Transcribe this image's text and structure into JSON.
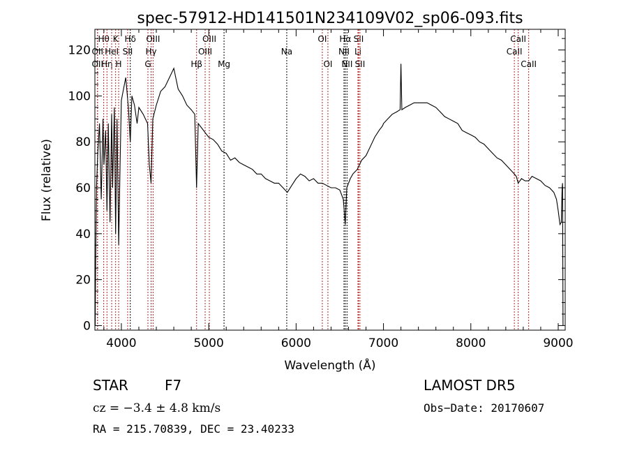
{
  "chart_data": {
    "type": "line",
    "title": "spec-57912-HD141501N234109V02_sp06-093.fits",
    "xlabel": "Wavelength (Å)",
    "ylabel": "Flux (relative)",
    "xlim": [
      3697,
      9080
    ],
    "ylim": [
      -2,
      129
    ],
    "xticks": [
      4000,
      5000,
      6000,
      7000,
      8000,
      9000
    ],
    "yticks": [
      0,
      20,
      40,
      60,
      80,
      100,
      120
    ],
    "grid": false,
    "series": [
      {
        "name": "spectrum",
        "x": [
          3700,
          3705,
          3715,
          3730,
          3750,
          3770,
          3790,
          3800,
          3820,
          3835,
          3850,
          3870,
          3889,
          3900,
          3920,
          3934,
          3950,
          3969,
          3985,
          4000,
          4020,
          4050,
          4080,
          4102,
          4120,
          4150,
          4180,
          4200,
          4250,
          4300,
          4320,
          4340,
          4360,
          4400,
          4450,
          4500,
          4550,
          4600,
          4650,
          4700,
          4750,
          4800,
          4840,
          4861,
          4880,
          4920,
          4960,
          5000,
          5050,
          5100,
          5150,
          5200,
          5250,
          5300,
          5350,
          5400,
          5450,
          5500,
          5550,
          5600,
          5650,
          5700,
          5750,
          5800,
          5850,
          5900,
          5950,
          6000,
          6050,
          6100,
          6150,
          6200,
          6250,
          6300,
          6350,
          6400,
          6450,
          6500,
          6540,
          6563,
          6580,
          6620,
          6650,
          6700,
          6750,
          6800,
          6850,
          6900,
          6950,
          6990,
          7000,
          7050,
          7100,
          7150,
          7190,
          7200,
          7210,
          7250,
          7300,
          7350,
          7400,
          7450,
          7500,
          7550,
          7600,
          7650,
          7700,
          7750,
          7800,
          7850,
          7900,
          7950,
          8000,
          8050,
          8100,
          8150,
          8200,
          8250,
          8300,
          8350,
          8400,
          8450,
          8498,
          8520,
          8542,
          8580,
          8620,
          8662,
          8700,
          8750,
          8800,
          8850,
          8900,
          8950,
          8980,
          9000,
          9020,
          9035,
          9045,
          9050,
          9055
        ],
        "y": [
          0,
          25,
          60,
          75,
          88,
          55,
          90,
          70,
          85,
          50,
          88,
          45,
          92,
          60,
          95,
          40,
          90,
          35,
          70,
          98,
          102,
          108,
          95,
          80,
          100,
          96,
          88,
          95,
          92,
          88,
          70,
          62,
          90,
          96,
          102,
          104,
          108,
          112,
          103,
          100,
          96,
          94,
          92,
          60,
          88,
          86,
          84,
          82,
          81,
          79,
          76,
          75,
          72,
          73,
          71,
          70,
          69,
          68,
          66,
          66,
          64,
          63,
          62,
          62,
          60,
          58,
          61,
          64,
          66,
          65,
          63,
          64,
          62,
          62,
          61,
          60,
          60,
          59,
          55,
          44,
          60,
          64,
          66,
          68,
          72,
          74,
          78,
          82,
          85,
          87,
          88,
          90,
          92,
          93,
          94,
          114,
          94,
          95,
          96,
          97,
          97,
          97,
          97,
          96,
          95,
          93,
          91,
          90,
          89,
          88,
          85,
          84,
          83,
          82,
          80,
          79,
          77,
          75,
          73,
          72,
          70,
          68,
          66,
          65,
          62,
          64,
          63,
          63,
          65,
          64,
          63,
          61,
          60,
          58,
          55,
          50,
          44,
          45,
          60,
          62,
          0
        ]
      }
    ],
    "spectral_lines": [
      {
        "label": "OII",
        "wave": 3727,
        "row": 1,
        "color": "#b22222"
      },
      {
        "label": "OII",
        "wave": 3727,
        "row": 2,
        "color": "#b22222"
      },
      {
        "label": "Hθ",
        "wave": 3798,
        "row": 0,
        "color": "#b22222"
      },
      {
        "label": "Hη",
        "wave": 3835,
        "row": 2,
        "color": "#b22222"
      },
      {
        "label": "HeI",
        "wave": 3889,
        "row": 1,
        "color": "#b22222"
      },
      {
        "label": "K",
        "wave": 3934,
        "row": 0,
        "color": "#b22222"
      },
      {
        "label": "H",
        "wave": 3969,
        "row": 2,
        "color": "#b22222"
      },
      {
        "label": "SII",
        "wave": 4072,
        "row": 1,
        "color": "#b22222"
      },
      {
        "label": "Hδ",
        "wave": 4102,
        "row": 0,
        "color": "#000000"
      },
      {
        "label": "G",
        "wave": 4304,
        "row": 2,
        "color": "#b22222"
      },
      {
        "label": "Hγ",
        "wave": 4340,
        "row": 1,
        "color": "#b22222"
      },
      {
        "label": "OIII",
        "wave": 4363,
        "row": 0,
        "color": "#b22222"
      },
      {
        "label": "Hβ",
        "wave": 4861,
        "row": 2,
        "color": "#b22222"
      },
      {
        "label": "OIII",
        "wave": 4959,
        "row": 1,
        "color": "#b22222"
      },
      {
        "label": "OIII",
        "wave": 5007,
        "row": 0,
        "color": "#b22222"
      },
      {
        "label": "Mg",
        "wave": 5175,
        "row": 2,
        "color": "#000000"
      },
      {
        "label": "Na",
        "wave": 5893,
        "row": 1,
        "color": "#000000"
      },
      {
        "label": "OI",
        "wave": 6300,
        "row": 0,
        "color": "#b22222"
      },
      {
        "label": "OI",
        "wave": 6364,
        "row": 2,
        "color": "#b22222"
      },
      {
        "label": "NII",
        "wave": 6548,
        "row": 1,
        "color": "#000000"
      },
      {
        "label": "Hα",
        "wave": 6563,
        "row": 0,
        "color": "#000000"
      },
      {
        "label": "NII",
        "wave": 6583,
        "row": 2,
        "color": "#000000"
      },
      {
        "label": "Li",
        "wave": 6708,
        "row": 1,
        "color": "#b22222"
      },
      {
        "label": "SII",
        "wave": 6716,
        "row": 0,
        "color": "#b22222"
      },
      {
        "label": "SII",
        "wave": 6731,
        "row": 2,
        "color": "#b22222"
      },
      {
        "label": "CaII",
        "wave": 8498,
        "row": 1,
        "color": "#b22222"
      },
      {
        "label": "CaII",
        "wave": 8542,
        "row": 0,
        "color": "#b22222"
      },
      {
        "label": "CaII",
        "wave": 8662,
        "row": 2,
        "color": "#b22222"
      }
    ]
  },
  "info": {
    "class": "STAR",
    "subclass": "F7",
    "survey": "LAMOST DR5",
    "cz": "cz = −3.4 ± 4.8 km/s",
    "obs_date": "Obs−Date: 20170607",
    "coords": "RA = 215.70839, DEC =  23.40233"
  }
}
